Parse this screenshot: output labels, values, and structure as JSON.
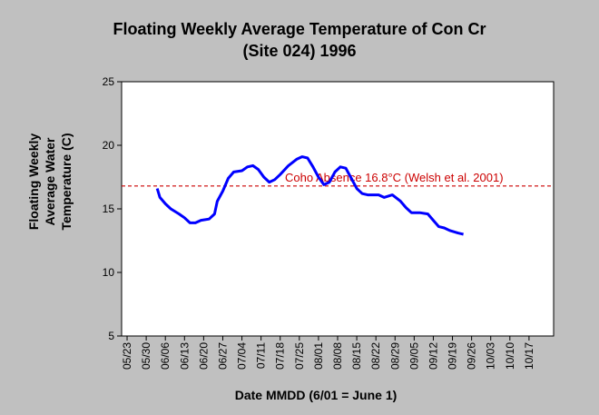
{
  "chart_data": {
    "type": "line",
    "title": [
      "Floating Weekly Average Temperature of Con Cr",
      "(Site 024) 1996"
    ],
    "ylabel": [
      "Floating Weekly",
      "Average Water",
      "Temperature (C)"
    ],
    "xlabel": "Date MMDD (6/01 = June 1)",
    "x": [
      "06/03",
      "06/04",
      "06/06",
      "06/08",
      "06/11",
      "06/13",
      "06/15",
      "06/17",
      "06/19",
      "06/22",
      "06/24",
      "06/25",
      "06/27",
      "06/29",
      "07/01",
      "07/04",
      "07/06",
      "07/08",
      "07/10",
      "07/12",
      "07/14",
      "07/16",
      "07/18",
      "07/21",
      "07/24",
      "07/26",
      "07/28",
      "07/30",
      "08/01",
      "08/03",
      "08/05",
      "08/07",
      "08/09",
      "08/11",
      "08/13",
      "08/15",
      "08/17",
      "08/19",
      "08/23",
      "08/25",
      "08/28",
      "08/31",
      "09/02",
      "09/04",
      "09/07",
      "09/10",
      "09/12",
      "09/14",
      "09/16",
      "09/18",
      "09/21",
      "09/23"
    ],
    "series": [
      {
        "name": "Floating Weekly Average Temperature",
        "color": "#0000ff",
        "values": [
          16.6,
          15.9,
          15.4,
          15.0,
          14.6,
          14.3,
          13.9,
          13.9,
          14.1,
          14.2,
          14.6,
          15.6,
          16.4,
          17.4,
          17.9,
          18.0,
          18.3,
          18.4,
          18.1,
          17.5,
          17.1,
          17.3,
          17.7,
          18.4,
          18.9,
          19.1,
          19.0,
          18.3,
          17.5,
          16.9,
          17.1,
          17.9,
          18.3,
          18.2,
          17.4,
          16.6,
          16.2,
          16.1,
          16.1,
          15.9,
          16.1,
          15.6,
          15.1,
          14.7,
          14.7,
          14.6,
          14.1,
          13.6,
          13.5,
          13.3,
          13.1,
          13.0
        ]
      }
    ],
    "reference_line": {
      "value": 16.8,
      "label": "Coho Absence 16.8°C (Welsh et al. 2001)",
      "color": "#cc0000"
    },
    "xlim": [
      "05/21",
      "10/26"
    ],
    "xticks": [
      "05/23",
      "05/30",
      "06/06",
      "06/13",
      "06/20",
      "06/27",
      "07/04",
      "07/11",
      "07/18",
      "07/25",
      "08/01",
      "08/08",
      "08/15",
      "08/22",
      "08/29",
      "09/05",
      "09/12",
      "09/19",
      "09/26",
      "10/03",
      "10/10",
      "10/17"
    ],
    "ylim": [
      5,
      25
    ],
    "yticks": [
      5,
      10,
      15,
      20,
      25
    ],
    "grid": false
  }
}
